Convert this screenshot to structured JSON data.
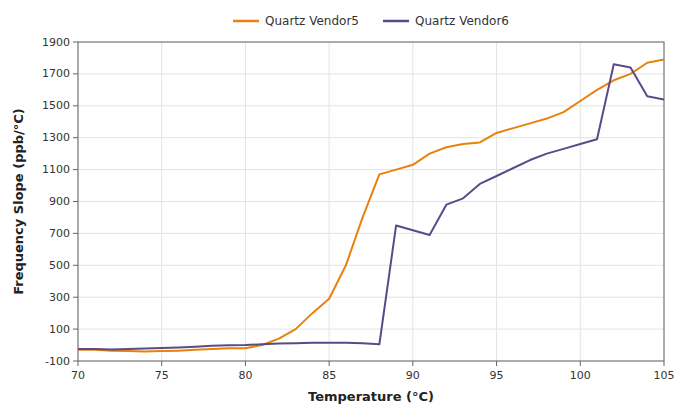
{
  "chart_data": {
    "type": "line",
    "xlabel": "Temperature (°C)",
    "ylabel": "Frequency Slope (ppb/°C)",
    "x": [
      70,
      71,
      72,
      73,
      74,
      75,
      76,
      77,
      78,
      79,
      80,
      81,
      82,
      83,
      84,
      85,
      86,
      87,
      88,
      89,
      90,
      91,
      92,
      93,
      94,
      95,
      96,
      97,
      98,
      99,
      100,
      101,
      102,
      103,
      104,
      105
    ],
    "series": [
      {
        "name": "Quartz Vendor5",
        "color": "#E8820C",
        "values": [
          -30,
          -30,
          -35,
          -38,
          -40,
          -38,
          -35,
          -30,
          -25,
          -20,
          -20,
          0,
          40,
          100,
          200,
          290,
          500,
          800,
          1070,
          1100,
          1130,
          1200,
          1240,
          1260,
          1270,
          1330,
          1360,
          1390,
          1420,
          1460,
          1530,
          1600,
          1660,
          1700,
          1770,
          1790
        ]
      },
      {
        "name": "Quartz Vendor6",
        "color": "#5B4A8A",
        "values": [
          -25,
          -25,
          -28,
          -25,
          -22,
          -18,
          -15,
          -10,
          -5,
          -2,
          0,
          5,
          10,
          12,
          15,
          15,
          15,
          12,
          5,
          750,
          720,
          690,
          880,
          920,
          1010,
          1060,
          1110,
          1160,
          1200,
          1230,
          1260,
          1290,
          1760,
          1740,
          1560,
          1540
        ]
      }
    ],
    "xlim": [
      70,
      105
    ],
    "ylim": [
      -100,
      1900
    ],
    "xticks": [
      70,
      75,
      80,
      85,
      90,
      95,
      100,
      105
    ],
    "yticks": [
      -100,
      100,
      300,
      500,
      700,
      900,
      1100,
      1300,
      1500,
      1700,
      1900
    ],
    "grid": true,
    "legend": "top"
  }
}
